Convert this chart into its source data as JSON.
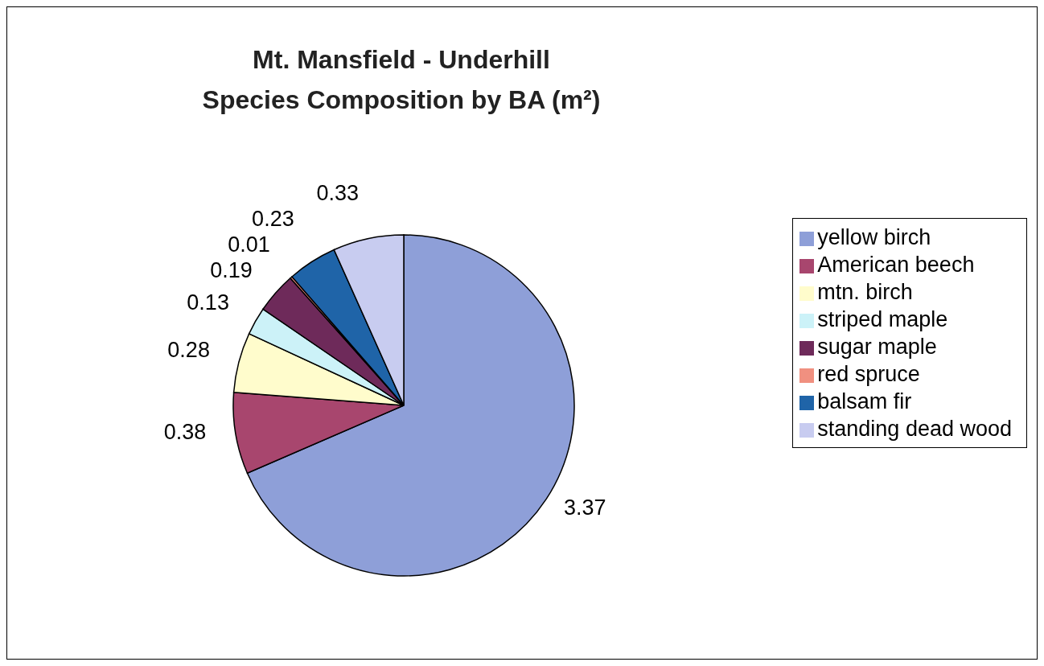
{
  "chart_data": {
    "type": "pie",
    "title": "Mt. Mansfield - Underhill",
    "subtitle": "Species Composition by BA (m²)",
    "categories": [
      "yellow birch",
      "American beech",
      "mtn. birch",
      "striped maple",
      "sugar maple",
      "red spruce",
      "balsam fir",
      "standing dead wood"
    ],
    "values": [
      3.37,
      0.38,
      0.28,
      0.13,
      0.19,
      0.01,
      0.23,
      0.33
    ],
    "colors": [
      "#8e9fd8",
      "#a8466e",
      "#fffccc",
      "#ccf2f8",
      "#6e2a5a",
      "#f09080",
      "#1f64a8",
      "#c8ccf0"
    ],
    "data_labels": true,
    "legend": "right"
  }
}
